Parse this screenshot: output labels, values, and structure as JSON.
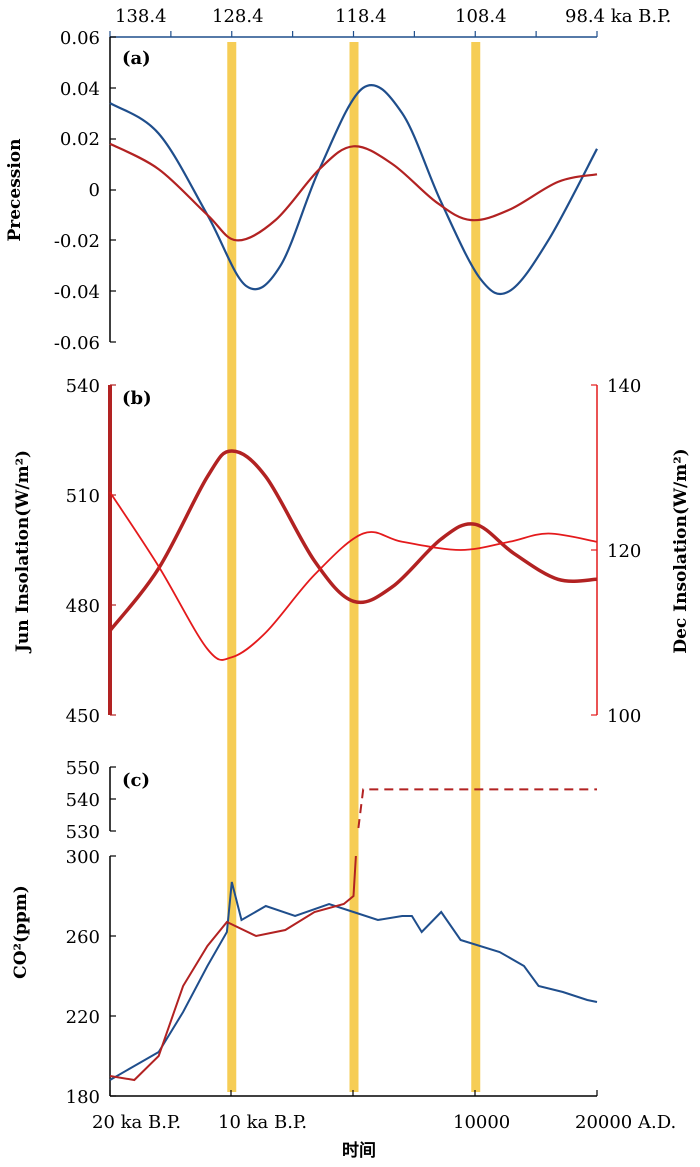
{
  "colors": {
    "blue": "#1f4e8c",
    "red": "#b22222",
    "red_thin": "#e41a1c",
    "band": "#f5c842",
    "top_axis": "#1f4e8c"
  },
  "chart_data": [
    {
      "id": "panel_a",
      "type": "line",
      "panel_label": "(a)",
      "ylabel": "Precession",
      "ylim": [
        -0.06,
        0.06
      ],
      "yticks": [
        "0.06",
        "0.04",
        "0.02",
        "0",
        "-0.02",
        "-0.04",
        "-0.06"
      ],
      "top_axis": {
        "ticks": [
          "138.4",
          "128.4",
          "118.4",
          "108.4"
        ],
        "end_label": "98.4 ka B.P."
      },
      "series": [
        {
          "name": "precession_blue",
          "color": "#1f4e8c",
          "points": [
            [
              0,
              0.034
            ],
            [
              0.1,
              0.022
            ],
            [
              0.2,
              -0.01
            ],
            [
              0.28,
              -0.038
            ],
            [
              0.35,
              -0.03
            ],
            [
              0.43,
              0.008
            ],
            [
              0.52,
              0.04
            ],
            [
              0.6,
              0.03
            ],
            [
              0.68,
              -0.005
            ],
            [
              0.76,
              -0.035
            ],
            [
              0.82,
              -0.04
            ],
            [
              0.9,
              -0.02
            ],
            [
              1.0,
              0.016
            ]
          ]
        },
        {
          "name": "precession_red",
          "color": "#b22222",
          "points": [
            [
              0,
              0.018
            ],
            [
              0.1,
              0.008
            ],
            [
              0.2,
              -0.01
            ],
            [
              0.26,
              -0.02
            ],
            [
              0.34,
              -0.012
            ],
            [
              0.43,
              0.008
            ],
            [
              0.5,
              0.017
            ],
            [
              0.58,
              0.01
            ],
            [
              0.67,
              -0.005
            ],
            [
              0.74,
              -0.012
            ],
            [
              0.82,
              -0.008
            ],
            [
              0.92,
              0.003
            ],
            [
              1.0,
              0.006
            ]
          ]
        }
      ]
    },
    {
      "id": "panel_b",
      "type": "line",
      "panel_label": "(b)",
      "ylabel_left": "Jun Insolation(W/m²)",
      "ylabel_right": "Dec Insolation(W/m²)",
      "ylim_left": [
        450,
        540
      ],
      "ylim_right": [
        100,
        140
      ],
      "yticks_left": [
        "540",
        "510",
        "480",
        "450"
      ],
      "yticks_right": [
        "140",
        "120",
        "100"
      ],
      "series": [
        {
          "name": "jun_insolation",
          "axis": "left",
          "color": "#b22222",
          "points": [
            [
              0,
              473
            ],
            [
              0.1,
              490
            ],
            [
              0.2,
              515
            ],
            [
              0.25,
              522
            ],
            [
              0.32,
              515
            ],
            [
              0.42,
              492
            ],
            [
              0.5,
              481
            ],
            [
              0.58,
              485
            ],
            [
              0.68,
              498
            ],
            [
              0.75,
              502
            ],
            [
              0.83,
              494
            ],
            [
              0.92,
              487
            ],
            [
              1.0,
              487
            ]
          ]
        },
        {
          "name": "dec_insolation",
          "axis": "right",
          "color": "#e41a1c",
          "points": [
            [
              0,
              127
            ],
            [
              0.1,
              118
            ],
            [
              0.2,
              108
            ],
            [
              0.25,
              107
            ],
            [
              0.32,
              110
            ],
            [
              0.42,
              117
            ],
            [
              0.52,
              122
            ],
            [
              0.6,
              121
            ],
            [
              0.72,
              120
            ],
            [
              0.82,
              121
            ],
            [
              0.9,
              122
            ],
            [
              1.0,
              121
            ]
          ]
        }
      ]
    },
    {
      "id": "panel_c",
      "type": "line",
      "panel_label": "(c)",
      "ylabel": "CO²(ppm)",
      "upper_ylim": [
        530,
        550
      ],
      "upper_yticks": [
        "550",
        "540",
        "530"
      ],
      "lower_ylim": [
        180,
        300
      ],
      "lower_yticks": [
        "300",
        "260",
        "220",
        "180"
      ],
      "xticks": [
        "20 ka B.P.",
        "10 ka B.P.",
        "10000",
        "20000 A.D."
      ],
      "xlabel": "时间",
      "series": [
        {
          "name": "co2_blue",
          "color": "#1f4e8c",
          "points": [
            [
              0,
              188
            ],
            [
              0.05,
              195
            ],
            [
              0.1,
              202
            ],
            [
              0.15,
              222
            ],
            [
              0.2,
              245
            ],
            [
              0.24,
              262
            ],
            [
              0.25,
              287
            ],
            [
              0.27,
              268
            ],
            [
              0.32,
              275
            ],
            [
              0.38,
              270
            ],
            [
              0.45,
              276
            ],
            [
              0.5,
              272
            ],
            [
              0.55,
              268
            ],
            [
              0.6,
              270
            ],
            [
              0.62,
              270
            ],
            [
              0.64,
              262
            ],
            [
              0.68,
              272
            ],
            [
              0.72,
              258
            ],
            [
              0.8,
              252
            ],
            [
              0.85,
              245
            ],
            [
              0.88,
              235
            ],
            [
              0.93,
              232
            ],
            [
              0.98,
              228
            ],
            [
              1.0,
              227
            ]
          ]
        },
        {
          "name": "co2_red",
          "color": "#b22222",
          "points": [
            [
              0,
              190
            ],
            [
              0.05,
              188
            ],
            [
              0.1,
              200
            ],
            [
              0.15,
              235
            ],
            [
              0.2,
              255
            ],
            [
              0.24,
              267
            ],
            [
              0.3,
              260
            ],
            [
              0.36,
              263
            ],
            [
              0.42,
              272
            ],
            [
              0.48,
              276
            ],
            [
              0.5,
              280
            ],
            [
              0.505,
              300
            ]
          ]
        },
        {
          "name": "co2_projection",
          "color": "#b22222",
          "dashed": true,
          "points": [
            [
              0.51,
              529
            ],
            [
              0.52,
              543
            ],
            [
              1.0,
              543
            ]
          ]
        }
      ]
    }
  ],
  "bands": [
    {
      "label": "band-1",
      "x": 0.249
    },
    {
      "label": "band-2",
      "x": 0.5
    },
    {
      "label": "band-3",
      "x": 0.75
    }
  ]
}
